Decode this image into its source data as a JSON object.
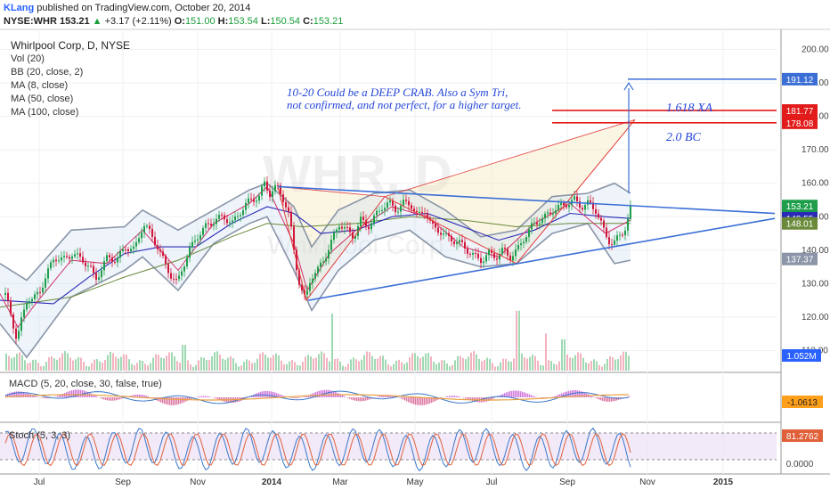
{
  "header": {
    "author": "KLang",
    "published_text": "published on TradingView.com, October 20, 2014",
    "symbol": "NYSE:WHR",
    "price": "153.21",
    "change": "+3.17 (+2.11%)",
    "open_label": "O:",
    "open": "151.00",
    "high_label": "H:",
    "high": "153.54",
    "low_label": "L:",
    "low": "150.54",
    "close_label": "C:",
    "close": "153.21"
  },
  "legend": {
    "title": "Whirlpool Corp, D, NYSE",
    "indicators": [
      "Vol (20)",
      "BB (20, close, 2)",
      "MA (8, close)",
      "MA (50, close)",
      "MA (100, close)"
    ]
  },
  "watermark": {
    "symbol": "WHR, D",
    "name": "Whirlpool Corp"
  },
  "annotations": {
    "note_line1": "10-20  Could be a DEEP CRAB.  Also a Sym Tri,",
    "note_line2": "not confirmed, and not perfect, for a higher target.",
    "xa_label": "1.618 XA",
    "bc_label": "2.0 BC"
  },
  "colors": {
    "candle_up": "#1e9e4a",
    "candle_down": "#d2163a",
    "bollinger": "#8a95a8",
    "ma8": "#d0306a",
    "ma50": "#2a2ab8",
    "ma100": "#6a8a3a",
    "trendline": "#3b6fd6",
    "pattern": "#e23a3a",
    "target_line": "#e21b1b",
    "projection_line": "#3b6fd6",
    "macd_line": "#3b78c8",
    "signal_line": "#e8a040",
    "stoch_fill": "#efe3f7"
  },
  "chart_data": {
    "type": "candlestick",
    "ticker": "WHR",
    "interval": "D",
    "x_tick_labels": [
      "Jul",
      "Sep",
      "Nov",
      "2014",
      "Mar",
      "May",
      "Jul",
      "Sep",
      "Nov",
      "2015"
    ],
    "price_axis": {
      "ylim": [
        104,
        206
      ],
      "ticks": [
        "200.00",
        "190.00",
        "180.00",
        "170.00",
        "160.00",
        "150.00",
        "140.00",
        "130.00",
        "120.00",
        "110.00"
      ],
      "tick_values": [
        200,
        190,
        180,
        170,
        160,
        150,
        140,
        130,
        120,
        110
      ]
    },
    "price_path": [
      [
        0,
        128
      ],
      [
        6,
        126
      ],
      [
        12,
        120
      ],
      [
        18,
        113
      ],
      [
        24,
        120
      ],
      [
        30,
        126
      ],
      [
        36,
        125
      ],
      [
        44,
        128
      ],
      [
        52,
        133
      ],
      [
        60,
        138
      ],
      [
        70,
        137
      ],
      [
        80,
        139
      ],
      [
        92,
        137
      ],
      [
        100,
        135
      ],
      [
        106,
        131
      ],
      [
        112,
        134
      ],
      [
        120,
        138
      ],
      [
        130,
        137
      ],
      [
        140,
        141
      ],
      [
        150,
        140
      ],
      [
        155,
        144
      ],
      [
        160,
        148
      ],
      [
        168,
        145
      ],
      [
        176,
        141
      ],
      [
        184,
        136
      ],
      [
        192,
        132
      ],
      [
        198,
        130
      ],
      [
        204,
        135
      ],
      [
        212,
        140
      ],
      [
        220,
        144
      ],
      [
        230,
        147
      ],
      [
        240,
        149
      ],
      [
        250,
        150
      ],
      [
        260,
        148
      ],
      [
        270,
        152
      ],
      [
        280,
        155
      ],
      [
        290,
        156
      ],
      [
        296,
        160
      ],
      [
        302,
        157
      ],
      [
        310,
        159
      ],
      [
        318,
        155
      ],
      [
        324,
        150
      ],
      [
        330,
        138
      ],
      [
        336,
        129
      ],
      [
        342,
        125
      ],
      [
        348,
        132
      ],
      [
        356,
        134
      ],
      [
        364,
        138
      ],
      [
        372,
        143
      ],
      [
        380,
        148
      ],
      [
        388,
        146
      ],
      [
        396,
        144
      ],
      [
        404,
        149
      ],
      [
        412,
        147
      ],
      [
        420,
        150
      ],
      [
        428,
        153
      ],
      [
        436,
        154
      ],
      [
        444,
        152
      ],
      [
        452,
        154
      ],
      [
        460,
        154
      ],
      [
        468,
        150
      ],
      [
        476,
        152
      ],
      [
        484,
        147
      ],
      [
        492,
        146
      ],
      [
        500,
        144
      ],
      [
        508,
        143
      ],
      [
        516,
        142
      ],
      [
        524,
        140
      ],
      [
        532,
        138
      ],
      [
        540,
        137
      ],
      [
        548,
        139
      ],
      [
        556,
        138
      ],
      [
        564,
        140
      ],
      [
        572,
        138
      ],
      [
        580,
        140
      ],
      [
        588,
        144
      ],
      [
        596,
        147
      ],
      [
        604,
        149
      ],
      [
        612,
        150
      ],
      [
        620,
        152
      ],
      [
        628,
        153
      ],
      [
        636,
        154
      ],
      [
        644,
        155
      ],
      [
        652,
        153
      ],
      [
        660,
        154
      ],
      [
        668,
        152
      ],
      [
        674,
        148
      ],
      [
        678,
        145
      ],
      [
        682,
        143
      ],
      [
        688,
        142
      ],
      [
        694,
        144
      ],
      [
        700,
        146
      ],
      [
        705,
        150
      ],
      [
        708,
        153.2
      ]
    ],
    "bb_upper_path": [
      [
        0,
        136
      ],
      [
        30,
        131
      ],
      [
        80,
        146
      ],
      [
        140,
        147
      ],
      [
        160,
        152
      ],
      [
        200,
        146
      ],
      [
        240,
        152
      ],
      [
        280,
        158
      ],
      [
        300,
        160
      ],
      [
        330,
        153
      ],
      [
        350,
        141
      ],
      [
        380,
        152
      ],
      [
        420,
        157
      ],
      [
        460,
        158
      ],
      [
        500,
        152
      ],
      [
        540,
        144
      ],
      [
        580,
        146
      ],
      [
        620,
        156
      ],
      [
        660,
        157
      ],
      [
        690,
        160
      ],
      [
        708,
        157
      ]
    ],
    "bb_lower_path": [
      [
        0,
        118
      ],
      [
        30,
        108
      ],
      [
        80,
        126
      ],
      [
        140,
        134
      ],
      [
        160,
        138
      ],
      [
        200,
        128
      ],
      [
        240,
        142
      ],
      [
        280,
        148
      ],
      [
        300,
        150
      ],
      [
        330,
        134
      ],
      [
        350,
        122
      ],
      [
        380,
        134
      ],
      [
        420,
        143
      ],
      [
        460,
        146
      ],
      [
        500,
        138
      ],
      [
        540,
        135
      ],
      [
        580,
        136
      ],
      [
        620,
        145
      ],
      [
        660,
        148
      ],
      [
        690,
        136
      ],
      [
        708,
        137
      ]
    ],
    "ma8_path": [
      [
        0,
        127
      ],
      [
        20,
        117
      ],
      [
        40,
        124
      ],
      [
        80,
        137
      ],
      [
        120,
        136
      ],
      [
        160,
        146
      ],
      [
        200,
        134
      ],
      [
        240,
        148
      ],
      [
        280,
        154
      ],
      [
        300,
        159
      ],
      [
        330,
        142
      ],
      [
        345,
        128
      ],
      [
        370,
        139
      ],
      [
        400,
        146
      ],
      [
        440,
        153
      ],
      [
        480,
        150
      ],
      [
        520,
        141
      ],
      [
        560,
        138
      ],
      [
        600,
        148
      ],
      [
        640,
        154
      ],
      [
        680,
        145
      ],
      [
        708,
        149
      ]
    ],
    "ma50_path": [
      [
        0,
        125
      ],
      [
        60,
        124
      ],
      [
        100,
        132
      ],
      [
        140,
        139
      ],
      [
        180,
        141
      ],
      [
        220,
        141
      ],
      [
        260,
        148
      ],
      [
        300,
        153
      ],
      [
        330,
        151
      ],
      [
        360,
        145
      ],
      [
        400,
        146
      ],
      [
        440,
        150
      ],
      [
        480,
        151
      ],
      [
        520,
        147
      ],
      [
        560,
        143
      ],
      [
        600,
        146
      ],
      [
        640,
        151
      ],
      [
        680,
        150
      ],
      [
        708,
        149.5
      ]
    ],
    "ma100_path": [
      [
        0,
        123
      ],
      [
        80,
        126
      ],
      [
        140,
        132
      ],
      [
        200,
        137
      ],
      [
        260,
        144
      ],
      [
        300,
        148
      ],
      [
        340,
        147
      ],
      [
        400,
        148
      ],
      [
        460,
        150
      ],
      [
        520,
        149
      ],
      [
        580,
        147
      ],
      [
        640,
        148
      ],
      [
        708,
        148
      ]
    ],
    "symmetrical_triangle": {
      "upper": [
        [
          312,
          159
        ],
        [
          870,
          151
        ]
      ],
      "lower": [
        [
          346,
          125
        ],
        [
          870,
          149.5
        ]
      ]
    },
    "harmonic_pattern": {
      "points": [
        [
          312,
          159
        ],
        [
          344,
          125
        ],
        [
          432,
          156
        ],
        [
          580,
          136
        ],
        [
          713,
          179
        ]
      ],
      "fill_triangles": [
        [
          [
            312,
            159
          ],
          [
            344,
            125
          ],
          [
            432,
            156
          ]
        ],
        [
          [
            432,
            156
          ],
          [
            580,
            136
          ],
          [
            713,
            179
          ]
        ]
      ]
    },
    "price_labels": [
      {
        "value": 191.12,
        "text": "191.12",
        "color": "#3b6fd6"
      },
      {
        "value": 181.77,
        "text": "181.77",
        "color": "#e21b1b"
      },
      {
        "value": 178.08,
        "text": "178.08",
        "color": "#e21b1b"
      },
      {
        "value": 153.21,
        "text": "153.21",
        "color": "#1e9e4a"
      },
      {
        "value": 149.55,
        "text": "149.55",
        "color": "#2a2ab8"
      },
      {
        "value": 148.01,
        "text": "148.01",
        "color": "#6a8a3a"
      },
      {
        "value": 137.37,
        "text": "137.37",
        "color": "#8a95a8"
      }
    ],
    "target_lines": [
      {
        "value": 191.12,
        "from": 705,
        "to": 872,
        "color": "#3b6fd6"
      },
      {
        "value": 181.77,
        "from": 620,
        "to": 872,
        "color": "#e21b1b"
      },
      {
        "value": 178.08,
        "from": 620,
        "to": 872,
        "color": "#e21b1b"
      }
    ],
    "projection_arrow": {
      "x": 706,
      "from_value": 157,
      "to_value": 190
    },
    "volume": {
      "label": "1.052M",
      "spikes": [
        [
          205,
          18
        ],
        [
          372,
          40
        ],
        [
          580,
          42
        ],
        [
          612,
          26
        ],
        [
          632,
          22
        ]
      ]
    },
    "macd": {
      "title": "MACD (5, 20, close, 30, false, true)",
      "value_label": "-1.0613"
    },
    "stoch": {
      "title": "Stoch (5, 3, 3)",
      "value_label": "81.2762",
      "bottom_tick": "0.0000"
    }
  }
}
